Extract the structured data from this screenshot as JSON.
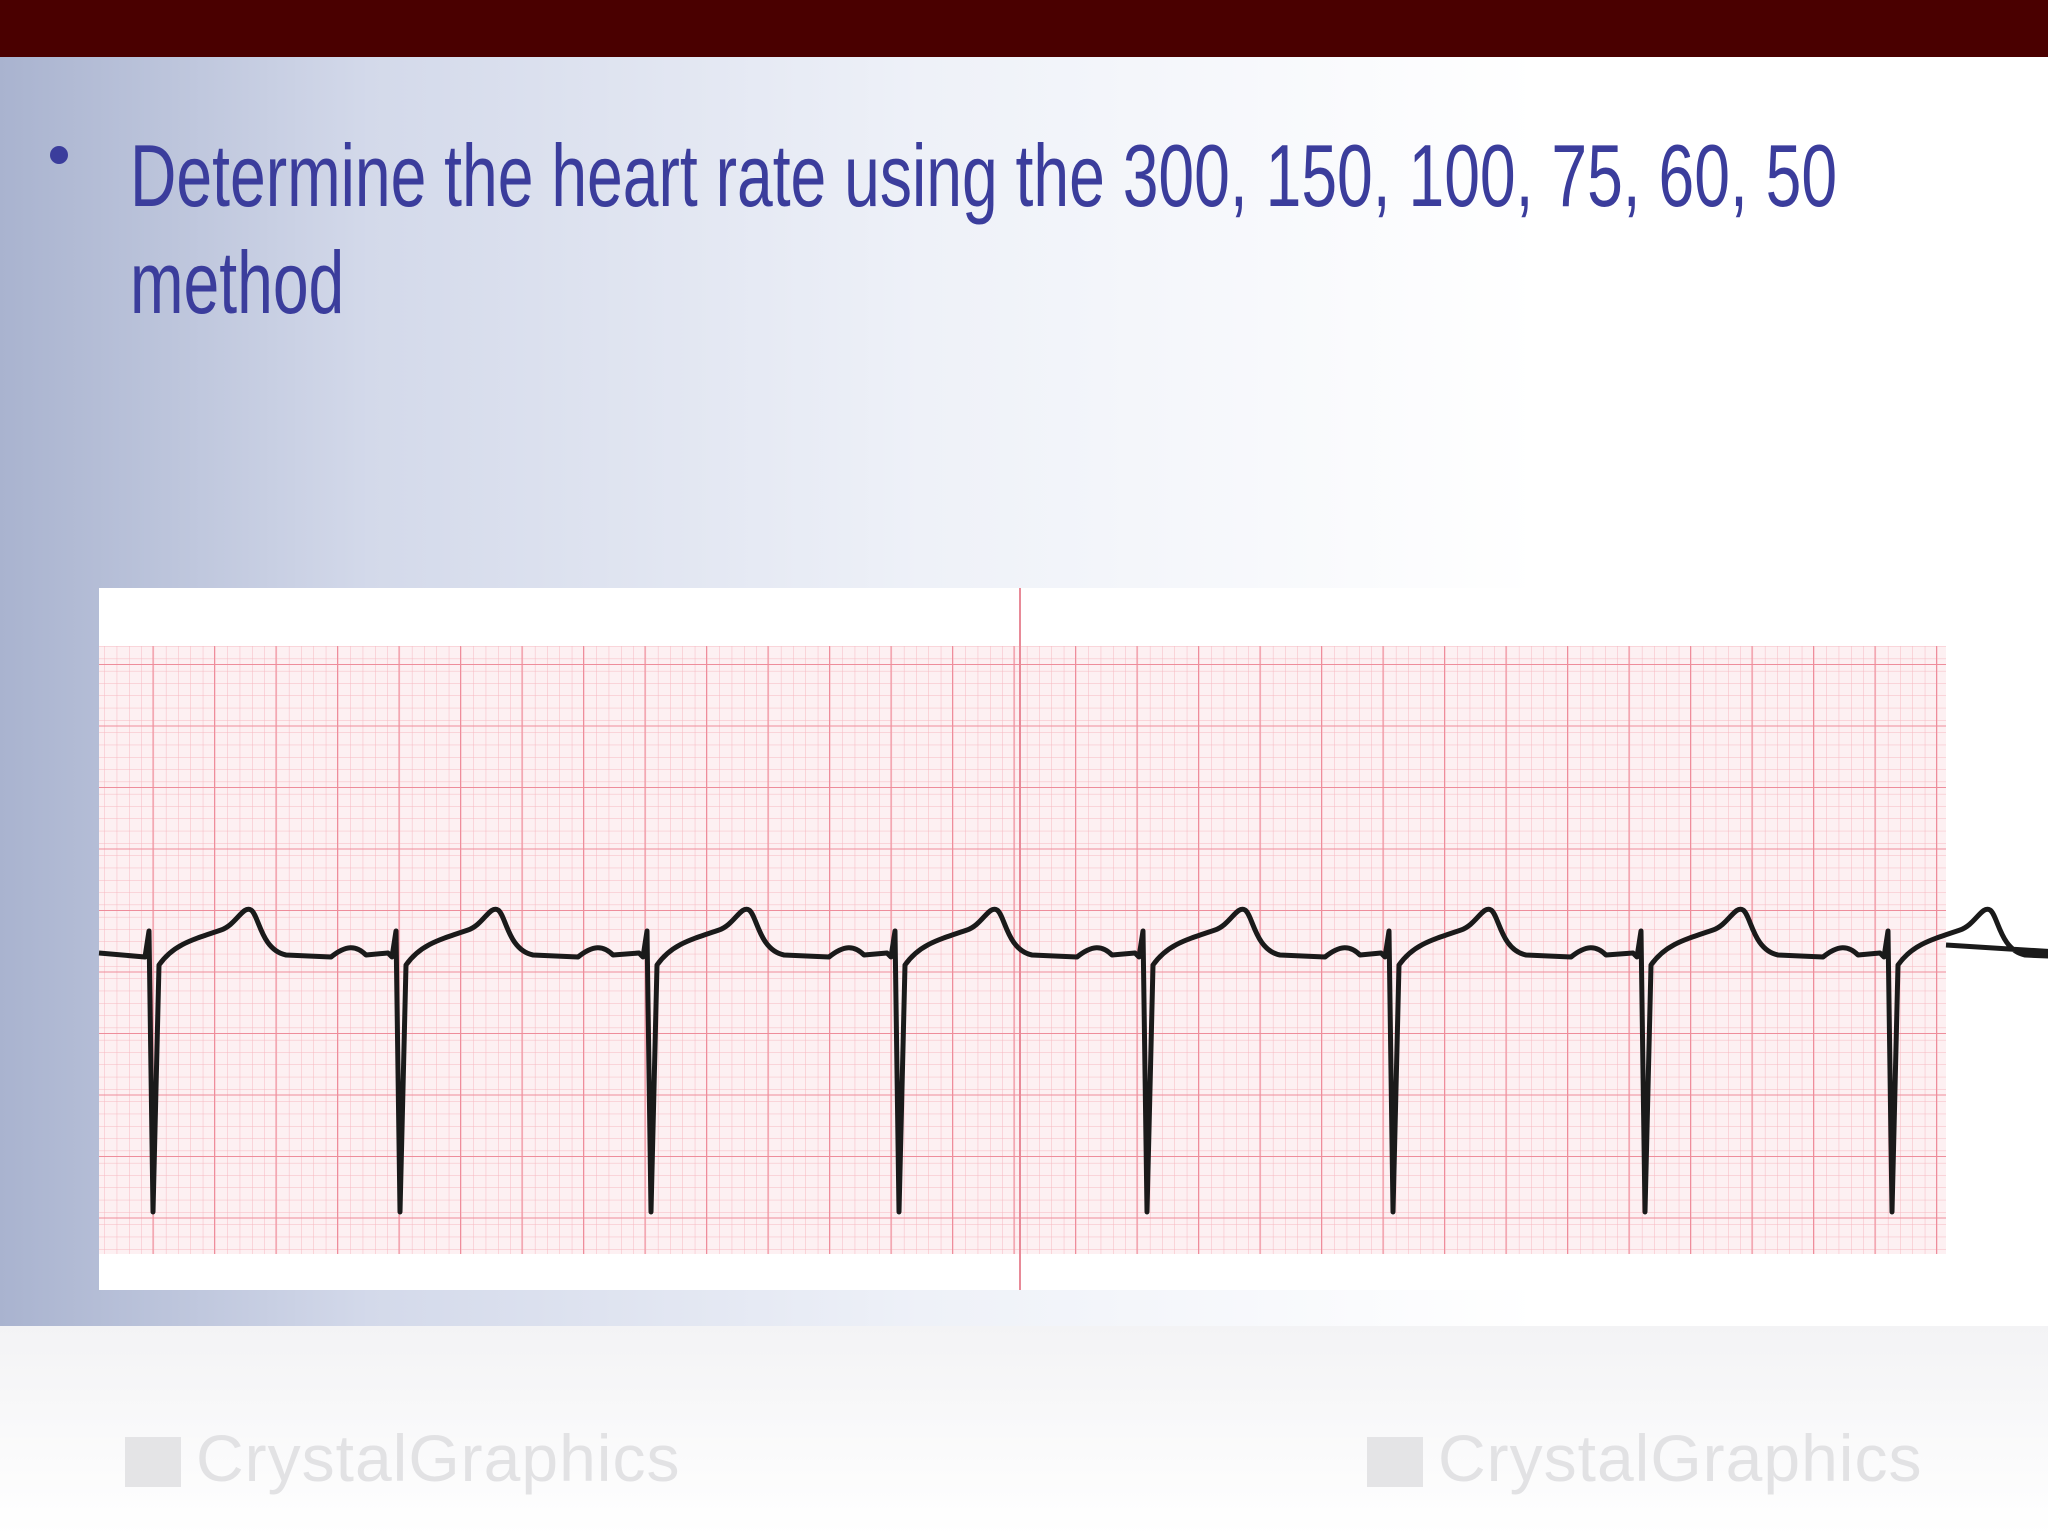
{
  "slide": {
    "bullets": [
      "Determine the heart rate using the 300, 150, 100, 75, 60, 50 method"
    ],
    "watermarks": [
      "CrystalGraphics",
      "CrystalGraphics"
    ]
  }
}
